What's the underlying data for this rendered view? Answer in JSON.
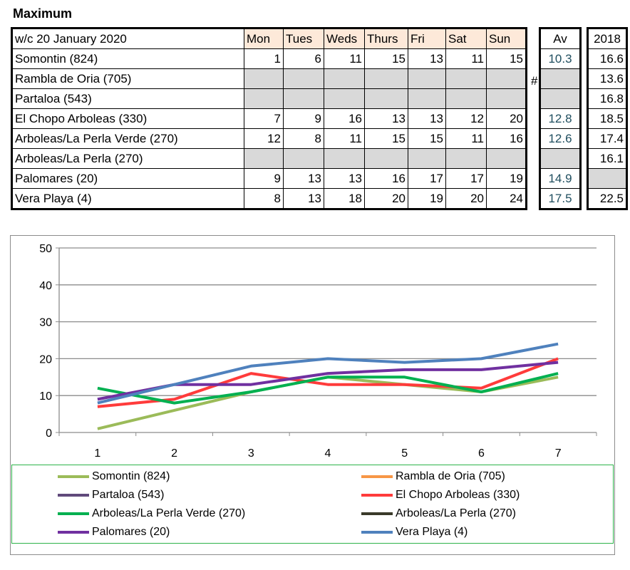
{
  "title": "Maximum",
  "table": {
    "week_label": "w/c 20 January 2020",
    "days": [
      "Mon",
      "Tues",
      "Weds",
      "Thurs",
      "Fri",
      "Sat",
      "Sun"
    ],
    "av_header": "Av",
    "y2018_header": "2018",
    "marker": "#",
    "rows": [
      {
        "name": "Somontin (824)",
        "values": [
          "1",
          "6",
          "11",
          "15",
          "13",
          "11",
          "15"
        ],
        "av": "10.3",
        "y2018": "16.6"
      },
      {
        "name": "Rambla de Oria (705)",
        "values": [
          "",
          "",
          "",
          "",
          "",
          "",
          ""
        ],
        "av": "",
        "y2018": "13.6"
      },
      {
        "name": "Partaloa (543)",
        "values": [
          "",
          "",
          "",
          "",
          "",
          "",
          ""
        ],
        "av": "",
        "y2018": "16.8"
      },
      {
        "name": "El Chopo  Arboleas (330)",
        "values": [
          "7",
          "9",
          "16",
          "13",
          "13",
          "12",
          "20"
        ],
        "av": "12.8",
        "y2018": "18.5"
      },
      {
        "name": "Arboleas/La Perla Verde (270)",
        "values": [
          "12",
          "8",
          "11",
          "15",
          "15",
          "11",
          "16"
        ],
        "av": "12.6",
        "y2018": "17.4"
      },
      {
        "name": "Arboleas/La Perla (270)",
        "values": [
          "",
          "",
          "",
          "",
          "",
          "",
          ""
        ],
        "av": "",
        "y2018": "16.1"
      },
      {
        "name": "Palomares (20)",
        "values": [
          "9",
          "13",
          "13",
          "16",
          "17",
          "17",
          "19"
        ],
        "av": "14.9",
        "y2018": ""
      },
      {
        "name": "Vera Playa (4)",
        "values": [
          "8",
          "13",
          "18",
          "20",
          "19",
          "20",
          "24"
        ],
        "av": "17.5",
        "y2018": "22.5"
      }
    ]
  },
  "chart_data": {
    "type": "line",
    "x": [
      1,
      2,
      3,
      4,
      5,
      6,
      7
    ],
    "x_tick_labels": [
      "1",
      "2",
      "3",
      "4",
      "5",
      "6",
      "7"
    ],
    "y_tick_labels": [
      "0",
      "10",
      "20",
      "30",
      "40",
      "50"
    ],
    "ylim": [
      0,
      50
    ],
    "grid": true,
    "legend_position": "bottom",
    "series": [
      {
        "name": "Somontin (824)",
        "color": "#9bbb59",
        "values": [
          1,
          6,
          11,
          15,
          13,
          11,
          15
        ]
      },
      {
        "name": "Rambla de Oria (705)",
        "color": "#f79646",
        "values": [
          null,
          null,
          null,
          null,
          null,
          null,
          null
        ]
      },
      {
        "name": "Partaloa (543)",
        "color": "#604a7b",
        "values": [
          null,
          null,
          null,
          null,
          null,
          null,
          null
        ]
      },
      {
        "name": "El Chopo  Arboleas (330)",
        "color": "#ff3b3b",
        "values": [
          7,
          9,
          16,
          13,
          13,
          12,
          20
        ]
      },
      {
        "name": "Arboleas/La Perla Verde (270)",
        "color": "#00b050",
        "values": [
          12,
          8,
          11,
          15,
          15,
          11,
          16
        ]
      },
      {
        "name": "Arboleas/La Perla (270)",
        "color": "#3a3a2a",
        "values": [
          null,
          null,
          null,
          null,
          null,
          null,
          null
        ]
      },
      {
        "name": "Palomares (20)",
        "color": "#7030a0",
        "values": [
          9,
          13,
          13,
          16,
          17,
          17,
          19
        ]
      },
      {
        "name": "Vera Playa (4)",
        "color": "#4f81bd",
        "values": [
          8,
          13,
          18,
          20,
          19,
          20,
          24
        ]
      }
    ]
  }
}
